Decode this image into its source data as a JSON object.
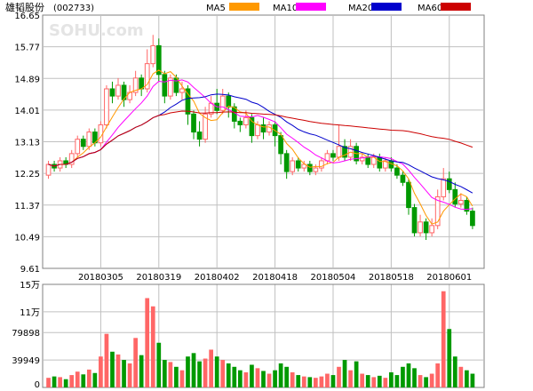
{
  "stock": {
    "name": "雄韬股份",
    "code": "(002733)"
  },
  "watermark": "SOHU.com",
  "legend": [
    {
      "label": "MA5",
      "color": "#FF9900"
    },
    {
      "label": "MA10",
      "color": "#FF00FF"
    },
    {
      "label": "MA20",
      "color": "#0000CC"
    },
    {
      "label": "MA60",
      "color": "#CC0000"
    }
  ],
  "colors": {
    "up": "#FF6666",
    "down": "#009900",
    "grid": "#C0C0C0",
    "border": "#808080"
  },
  "chart_data": {
    "type": "candlestick",
    "price_axis": {
      "ticks": [
        "16.65",
        "15.77",
        "14.89",
        "14.01",
        "13.13",
        "12.25",
        "11.37",
        "10.49",
        "9.61"
      ],
      "ylim": [
        9.61,
        16.65
      ]
    },
    "date_ticks": [
      {
        "label": "20180305",
        "index": 9
      },
      {
        "label": "20180319",
        "index": 19
      },
      {
        "label": "20180402",
        "index": 29
      },
      {
        "label": "20180418",
        "index": 39
      },
      {
        "label": "20180504",
        "index": 49
      },
      {
        "label": "20180518",
        "index": 59
      },
      {
        "label": "20180601",
        "index": 69
      }
    ],
    "volume_axis": {
      "ticks": [
        "15万",
        "11万",
        "79898",
        "39949",
        "0"
      ],
      "ylim": [
        0,
        150000
      ]
    },
    "candles": [
      [
        12.2,
        12.5,
        12.6,
        12.1,
        14000
      ],
      [
        12.5,
        12.4,
        12.6,
        12.3,
        16000
      ],
      [
        12.4,
        12.6,
        12.7,
        12.3,
        15000
      ],
      [
        12.6,
        12.5,
        12.7,
        12.4,
        12000
      ],
      [
        12.5,
        12.8,
        12.9,
        12.4,
        18000
      ],
      [
        12.8,
        13.2,
        13.3,
        12.7,
        23000
      ],
      [
        13.2,
        13.0,
        13.3,
        12.9,
        19000
      ],
      [
        13.0,
        13.4,
        13.5,
        12.9,
        26000
      ],
      [
        13.4,
        13.1,
        13.5,
        13.0,
        21000
      ],
      [
        13.1,
        13.6,
        13.7,
        13.0,
        45000
      ],
      [
        13.6,
        14.6,
        14.7,
        13.5,
        78000
      ],
      [
        14.6,
        14.4,
        14.8,
        14.2,
        52000
      ],
      [
        14.4,
        14.7,
        14.9,
        14.3,
        48000
      ],
      [
        14.7,
        14.3,
        14.8,
        14.1,
        40000
      ],
      [
        14.3,
        14.5,
        14.7,
        14.2,
        35000
      ],
      [
        14.5,
        14.9,
        15.1,
        14.4,
        72000
      ],
      [
        14.9,
        14.6,
        15.0,
        14.4,
        47000
      ],
      [
        14.6,
        15.3,
        15.7,
        14.5,
        130000
      ],
      [
        15.3,
        15.8,
        16.1,
        15.2,
        118000
      ],
      [
        15.8,
        15.0,
        16.0,
        14.8,
        65000
      ],
      [
        15.0,
        14.4,
        15.1,
        14.2,
        40000
      ],
      [
        14.4,
        14.9,
        15.0,
        14.3,
        37000
      ],
      [
        14.9,
        14.5,
        15.0,
        14.4,
        30000
      ],
      [
        14.5,
        14.6,
        14.8,
        14.3,
        25000
      ],
      [
        14.6,
        13.9,
        14.7,
        13.6,
        45000
      ],
      [
        13.9,
        13.4,
        14.0,
        13.2,
        50000
      ],
      [
        13.4,
        13.2,
        13.7,
        13.0,
        38000
      ],
      [
        13.2,
        13.9,
        14.1,
        13.1,
        42000
      ],
      [
        13.9,
        14.2,
        14.4,
        13.8,
        55000
      ],
      [
        14.2,
        14.0,
        14.6,
        13.9,
        45000
      ],
      [
        14.0,
        14.4,
        14.6,
        13.9,
        40000
      ],
      [
        14.4,
        14.1,
        14.5,
        13.8,
        35000
      ],
      [
        14.1,
        13.7,
        14.2,
        13.5,
        30000
      ],
      [
        13.7,
        13.6,
        13.8,
        13.4,
        25000
      ],
      [
        13.6,
        13.8,
        14.0,
        13.5,
        22000
      ],
      [
        13.8,
        13.3,
        13.9,
        13.1,
        33000
      ],
      [
        13.3,
        13.6,
        13.7,
        13.2,
        28000
      ],
      [
        13.6,
        13.4,
        13.8,
        13.2,
        24000
      ],
      [
        13.4,
        13.6,
        13.7,
        13.3,
        20000
      ],
      [
        13.6,
        13.3,
        13.7,
        13.0,
        25000
      ],
      [
        13.3,
        12.8,
        13.4,
        12.5,
        35000
      ],
      [
        12.8,
        12.3,
        12.9,
        12.1,
        30000
      ],
      [
        12.3,
        12.6,
        12.7,
        12.2,
        22000
      ],
      [
        12.6,
        12.4,
        12.7,
        12.3,
        18000
      ],
      [
        12.4,
        12.5,
        12.6,
        12.3,
        16000
      ],
      [
        12.5,
        12.3,
        12.6,
        12.2,
        15000
      ],
      [
        12.3,
        12.4,
        12.5,
        12.2,
        14000
      ],
      [
        12.4,
        12.6,
        12.7,
        12.3,
        16000
      ],
      [
        12.6,
        12.8,
        12.9,
        12.5,
        20000
      ],
      [
        12.8,
        12.7,
        12.9,
        12.6,
        18000
      ],
      [
        12.7,
        13.0,
        13.6,
        12.6,
        30000
      ],
      [
        13.0,
        12.7,
        13.2,
        12.6,
        40000
      ],
      [
        12.7,
        13.0,
        13.2,
        12.6,
        25000
      ],
      [
        13.0,
        12.6,
        13.1,
        12.5,
        38000
      ],
      [
        12.6,
        12.7,
        12.8,
        12.5,
        20000
      ],
      [
        12.7,
        12.5,
        12.8,
        12.4,
        18000
      ],
      [
        12.5,
        12.7,
        12.8,
        12.4,
        15000
      ],
      [
        12.7,
        12.4,
        12.8,
        12.3,
        17000
      ],
      [
        12.4,
        12.6,
        12.7,
        12.3,
        14000
      ],
      [
        12.6,
        12.4,
        12.7,
        12.3,
        22000
      ],
      [
        12.4,
        12.2,
        12.5,
        12.1,
        18000
      ],
      [
        12.2,
        12.0,
        12.3,
        11.9,
        30000
      ],
      [
        12.0,
        11.3,
        12.1,
        11.1,
        35000
      ],
      [
        11.3,
        10.6,
        11.4,
        10.5,
        28000
      ],
      [
        10.6,
        10.9,
        11.1,
        10.5,
        18000
      ],
      [
        10.9,
        10.6,
        11.0,
        10.4,
        15000
      ],
      [
        10.6,
        10.8,
        11.0,
        10.5,
        20000
      ],
      [
        10.8,
        11.6,
        11.8,
        10.7,
        35000
      ],
      [
        11.6,
        12.1,
        12.4,
        11.5,
        140000
      ],
      [
        12.1,
        11.8,
        12.3,
        11.7,
        85000
      ],
      [
        11.8,
        11.4,
        12.0,
        11.3,
        45000
      ],
      [
        11.4,
        11.5,
        11.7,
        11.3,
        30000
      ],
      [
        11.5,
        11.2,
        11.6,
        11.1,
        25000
      ],
      [
        11.2,
        10.8,
        11.3,
        10.7,
        20000
      ]
    ]
  }
}
